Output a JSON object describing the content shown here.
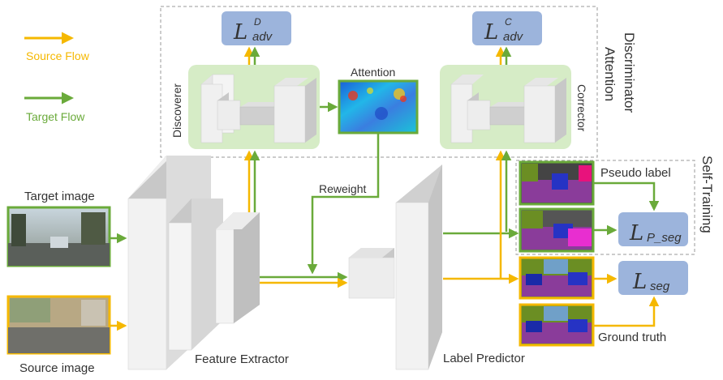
{
  "legend": {
    "source_flow": "Source Flow",
    "target_flow": "Target Flow",
    "source_color": "#f5b800",
    "target_color": "#6aaa3a"
  },
  "groups": {
    "discriminator_attention": "Discriminator Attention",
    "self_training": "Self-Training"
  },
  "modules": {
    "discoverer": "Discoverer",
    "corrector": "Corrector",
    "attention": "Attention",
    "reweight": "Reweight",
    "feature_extractor": "Feature Extractor",
    "label_predictor": "Label Predictor"
  },
  "images": {
    "target_image": "Target image",
    "source_image": "Source image",
    "pseudo_label": "Pseudo label",
    "ground_truth": "Ground truth"
  },
  "losses": {
    "adv_d": {
      "script": "L",
      "sup": "D",
      "sub": "adv"
    },
    "adv_c": {
      "script": "L",
      "sup": "C",
      "sub": "adv"
    },
    "p_seg": {
      "script": "L",
      "sub": "P_seg"
    },
    "seg": {
      "script": "L",
      "sub": "seg"
    }
  },
  "colors": {
    "loss_box": "#9cb4dc",
    "disc_bg": "#d6ecc6",
    "block_face": "#f2f2f2",
    "block_side": "#c8c8c8"
  }
}
